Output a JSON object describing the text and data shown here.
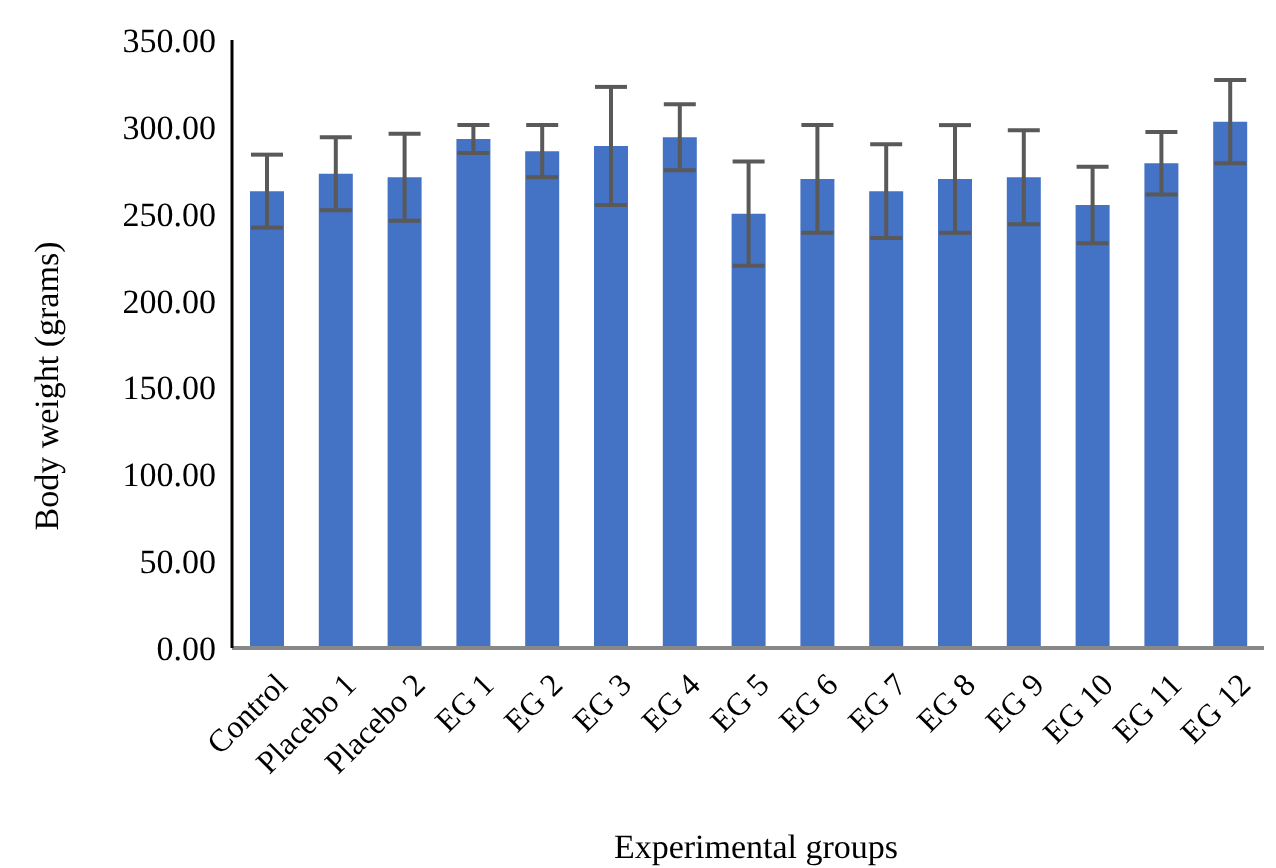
{
  "chart_data": {
    "type": "bar",
    "xlabel": "Experimental groups",
    "ylabel": "Body weight (grams)",
    "categories": [
      "Control",
      "Placebo 1",
      "Placebo 2",
      "EG 1",
      "EG 2",
      "EG 3",
      "EG 4",
      "EG 5",
      "EG 6",
      "EG 7",
      "EG 8",
      "EG 9",
      "EG 10",
      "EG 11",
      "EG 12"
    ],
    "values": [
      263,
      273,
      271,
      293,
      286,
      289,
      294,
      250,
      270,
      263,
      270,
      271,
      255,
      279,
      303
    ],
    "errors": [
      21,
      21,
      25,
      8,
      15,
      34,
      19,
      30,
      31,
      27,
      31,
      27,
      22,
      18,
      24
    ],
    "color": "#4472c4",
    "ylim": [
      0,
      350
    ],
    "yticks": [
      {
        "value": 0,
        "label": "0.00"
      },
      {
        "value": 50,
        "label": "50.00"
      },
      {
        "value": 100,
        "label": "100.00"
      },
      {
        "value": 150,
        "label": "150.00"
      },
      {
        "value": 200,
        "label": "200.00"
      },
      {
        "value": 250,
        "label": "250.00"
      },
      {
        "value": 300,
        "label": "300.00"
      },
      {
        "value": 350,
        "label": "350.00"
      }
    ],
    "grid": false,
    "legend": false
  }
}
